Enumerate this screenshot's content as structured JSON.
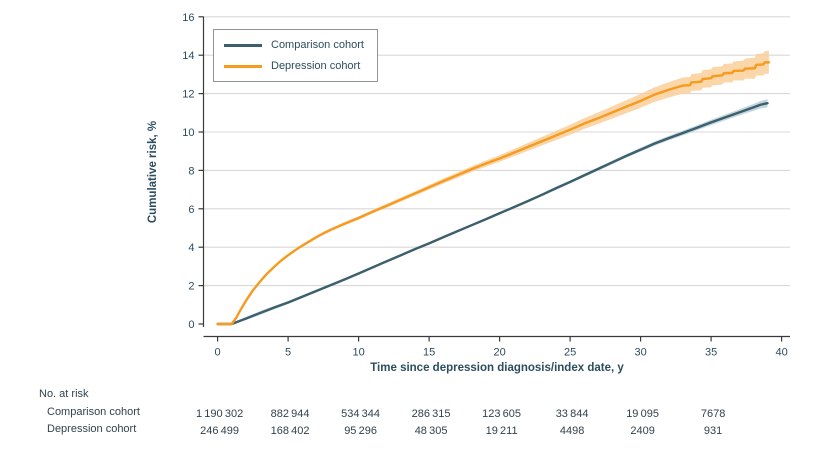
{
  "chart_data": {
    "type": "line",
    "title": "",
    "xlabel": "Time since depression diagnosis/index date, y",
    "ylabel": "Cumulative risk, %",
    "xlim": [
      0,
      40
    ],
    "ylim": [
      0,
      16
    ],
    "x_ticks": [
      0,
      5,
      10,
      15,
      20,
      25,
      30,
      35,
      40
    ],
    "y_ticks": [
      0,
      2,
      4,
      6,
      8,
      10,
      12,
      14,
      16
    ],
    "grid": true,
    "legend_position": "top-left",
    "colors": {
      "comparison_line": "#3b5f6d",
      "comparison_band": "#b9cfd7",
      "depression_line": "#f69a20",
      "depression_band": "#f9cf9a",
      "gridline": "#d8d8d8",
      "axis": "#3a3a3a",
      "tick_text": "#2c4d5e"
    },
    "series": [
      {
        "name": "Comparison cohort",
        "color": "#3b5f6d",
        "band_color": "#b9cfd7",
        "points": [
          [
            0,
            0
          ],
          [
            1,
            0
          ],
          [
            2,
            0.28
          ],
          [
            3,
            0.57
          ],
          [
            4,
            0.85
          ],
          [
            5,
            1.12
          ],
          [
            6,
            1.42
          ],
          [
            7,
            1.72
          ],
          [
            8,
            2.02
          ],
          [
            9,
            2.32
          ],
          [
            10,
            2.63
          ],
          [
            11,
            2.95
          ],
          [
            12,
            3.27
          ],
          [
            13,
            3.58
          ],
          [
            14,
            3.9
          ],
          [
            15,
            4.2
          ],
          [
            16,
            4.52
          ],
          [
            17,
            4.83
          ],
          [
            18,
            5.14
          ],
          [
            19,
            5.45
          ],
          [
            20,
            5.77
          ],
          [
            21,
            6.08
          ],
          [
            22,
            6.4
          ],
          [
            23,
            6.73
          ],
          [
            24,
            7.07
          ],
          [
            25,
            7.4
          ],
          [
            26,
            7.74
          ],
          [
            27,
            8.08
          ],
          [
            28,
            8.42
          ],
          [
            29,
            8.76
          ],
          [
            30,
            9.08
          ],
          [
            31,
            9.4
          ],
          [
            32,
            9.68
          ],
          [
            33,
            9.95
          ],
          [
            34,
            10.22
          ],
          [
            35,
            10.5
          ],
          [
            36,
            10.76
          ],
          [
            37,
            11.02
          ],
          [
            37.5,
            11.15
          ],
          [
            38,
            11.28
          ],
          [
            38.5,
            11.42
          ],
          [
            39,
            11.5
          ]
        ],
        "ci_half_width": [
          [
            0,
            0
          ],
          [
            1,
            0.05
          ],
          [
            3,
            0.1
          ],
          [
            5,
            0.08
          ],
          [
            10,
            0.05
          ],
          [
            15,
            0.05
          ],
          [
            20,
            0.06
          ],
          [
            25,
            0.08
          ],
          [
            30,
            0.1
          ],
          [
            35,
            0.14
          ],
          [
            37,
            0.16
          ],
          [
            38,
            0.18
          ],
          [
            39,
            0.21
          ]
        ]
      },
      {
        "name": "Depression cohort",
        "color": "#f69a20",
        "band_color": "#f9cf9a",
        "points": [
          [
            0,
            0
          ],
          [
            1,
            0
          ],
          [
            1.3,
            0.3
          ],
          [
            1.6,
            0.7
          ],
          [
            2,
            1.2
          ],
          [
            2.5,
            1.75
          ],
          [
            3,
            2.2
          ],
          [
            3.5,
            2.62
          ],
          [
            4,
            2.97
          ],
          [
            4.5,
            3.3
          ],
          [
            5,
            3.58
          ],
          [
            5.5,
            3.84
          ],
          [
            6,
            4.08
          ],
          [
            6.5,
            4.3
          ],
          [
            7,
            4.52
          ],
          [
            7.5,
            4.72
          ],
          [
            8,
            4.9
          ],
          [
            9,
            5.22
          ],
          [
            10,
            5.52
          ],
          [
            11,
            5.85
          ],
          [
            12,
            6.16
          ],
          [
            13,
            6.48
          ],
          [
            14,
            6.8
          ],
          [
            15,
            7.12
          ],
          [
            16,
            7.44
          ],
          [
            17,
            7.75
          ],
          [
            18,
            8.06
          ],
          [
            19,
            8.35
          ],
          [
            20,
            8.62
          ],
          [
            21,
            8.92
          ],
          [
            22,
            9.22
          ],
          [
            23,
            9.52
          ],
          [
            24,
            9.82
          ],
          [
            25,
            10.12
          ],
          [
            26,
            10.44
          ],
          [
            27,
            10.72
          ],
          [
            28,
            11.02
          ],
          [
            29,
            11.32
          ],
          [
            30,
            11.62
          ],
          [
            31,
            11.95
          ],
          [
            32,
            12.2
          ],
          [
            33,
            12.42
          ],
          [
            33.5,
            12.44
          ],
          [
            33.6,
            12.58
          ],
          [
            34.3,
            12.62
          ],
          [
            34.4,
            12.76
          ],
          [
            35,
            12.8
          ],
          [
            35.1,
            12.9
          ],
          [
            35.8,
            12.95
          ],
          [
            35.9,
            13.06
          ],
          [
            36.5,
            13.08
          ],
          [
            36.6,
            13.18
          ],
          [
            37.3,
            13.2
          ],
          [
            37.4,
            13.3
          ],
          [
            38.1,
            13.32
          ],
          [
            38.2,
            13.5
          ],
          [
            38.7,
            13.52
          ],
          [
            38.8,
            13.62
          ],
          [
            39.1,
            13.63
          ]
        ],
        "ci_half_width": [
          [
            0,
            0
          ],
          [
            1,
            0.03
          ],
          [
            5,
            0.06
          ],
          [
            10,
            0.09
          ],
          [
            15,
            0.12
          ],
          [
            20,
            0.17
          ],
          [
            25,
            0.26
          ],
          [
            30,
            0.36
          ],
          [
            33,
            0.42
          ],
          [
            35,
            0.47
          ],
          [
            37,
            0.5
          ],
          [
            38,
            0.55
          ],
          [
            39.1,
            0.6
          ]
        ]
      }
    ],
    "at_risk": {
      "header": "No. at risk",
      "time_points": [
        0,
        5,
        10,
        15,
        20,
        25,
        30,
        35
      ],
      "rows": [
        {
          "label": "Comparison cohort",
          "values": [
            "1 190 302",
            "882 944",
            "534 344",
            "286 315",
            "123 605",
            "33 844",
            "19 095",
            "7678"
          ]
        },
        {
          "label": "Depression cohort",
          "values": [
            "246 499",
            "168 402",
            "95 296",
            "48 305",
            "19 211",
            "4498",
            "2409",
            "931"
          ]
        }
      ]
    }
  }
}
